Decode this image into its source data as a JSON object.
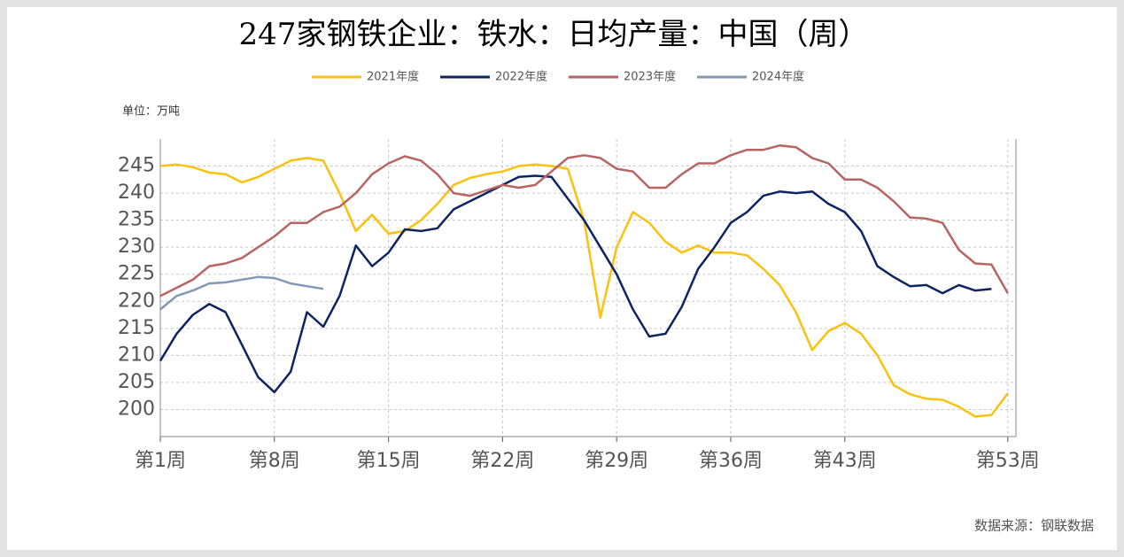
{
  "chart_data": {
    "type": "line",
    "title": "247家钢铁企业：铁水：日均产量：中国（周）",
    "unit_label": "单位：万吨",
    "source": "数据来源：钢联数据",
    "categories": [
      "第1周",
      null,
      null,
      null,
      null,
      null,
      null,
      "第8周",
      null,
      null,
      null,
      null,
      null,
      null,
      "第15周",
      null,
      null,
      null,
      null,
      null,
      null,
      "第22周",
      null,
      null,
      null,
      null,
      null,
      null,
      "第29周",
      null,
      null,
      null,
      null,
      null,
      null,
      "第36周",
      null,
      null,
      null,
      null,
      null,
      null,
      "第43周",
      null,
      null,
      null,
      null,
      null,
      null,
      null,
      null,
      null,
      "第53周"
    ],
    "series": [
      {
        "name": "2021年度",
        "color": "#fcc10e",
        "values": [
          245,
          245.3,
          244.8,
          243.8,
          243.5,
          242,
          243,
          244.5,
          246,
          246.5,
          246,
          240,
          233,
          236,
          232.5,
          233,
          235,
          238,
          241.5,
          242.8,
          243.5,
          244,
          245,
          245.3,
          245,
          244.5,
          235,
          217,
          230,
          236.5,
          234.5,
          231,
          229,
          230.3,
          229,
          229,
          228.5,
          226,
          223,
          218,
          211,
          214.5,
          216,
          214,
          210,
          204.5,
          202.8,
          202,
          201.8,
          200.5,
          198.7,
          199,
          203
        ]
      },
      {
        "name": "2022年度",
        "color": "#0e2462",
        "values": [
          209,
          214,
          217.5,
          219.5,
          218,
          212,
          206,
          203.2,
          207,
          218,
          215.3,
          221,
          230.3,
          226.5,
          229,
          233.3,
          233,
          233.5,
          237,
          238.5,
          240,
          241.5,
          243,
          243.2,
          243,
          239,
          235,
          230,
          225,
          218.5,
          213.5,
          214,
          219,
          226,
          230,
          234.5,
          236.5,
          239.5,
          240.3,
          240,
          240.3,
          238,
          236.5,
          233,
          226.5,
          224.5,
          222.8,
          223,
          221.5,
          223,
          222,
          222.3,
          null
        ]
      },
      {
        "name": "2023年度",
        "color": "#b86462",
        "values": [
          221,
          222.5,
          224,
          226.5,
          227,
          228,
          230,
          232,
          234.5,
          234.5,
          236.5,
          237.5,
          240,
          243.5,
          245.5,
          246.8,
          246,
          243.5,
          240,
          239.5,
          240.5,
          241.5,
          241,
          241.5,
          244,
          246.5,
          247,
          246.5,
          244.5,
          244,
          241,
          241,
          243.5,
          245.5,
          245.5,
          247,
          248,
          248,
          248.8,
          248.5,
          246.5,
          245.5,
          242.5,
          242.5,
          241,
          238.5,
          235.5,
          235.3,
          234.5,
          229.5,
          227,
          226.8,
          221.5
        ]
      },
      {
        "name": "2024年度",
        "color": "#8398b6",
        "values": [
          218.5,
          221,
          222,
          223.3,
          223.5,
          224,
          224.5,
          224.3,
          223.3,
          222.8,
          222.3,
          null,
          null,
          null,
          null,
          null,
          null,
          null,
          null,
          null,
          null,
          null,
          null,
          null,
          null,
          null,
          null,
          null,
          null,
          null,
          null,
          null,
          null,
          null,
          null,
          null,
          null,
          null,
          null,
          null,
          null,
          null,
          null,
          null,
          null,
          null,
          null,
          null,
          null,
          null,
          null,
          null,
          null
        ]
      }
    ],
    "ylim": [
      195,
      250
    ],
    "yticks": [
      200,
      205,
      210,
      215,
      220,
      225,
      230,
      235,
      240,
      245
    ],
    "grid": true,
    "legend": "top"
  }
}
